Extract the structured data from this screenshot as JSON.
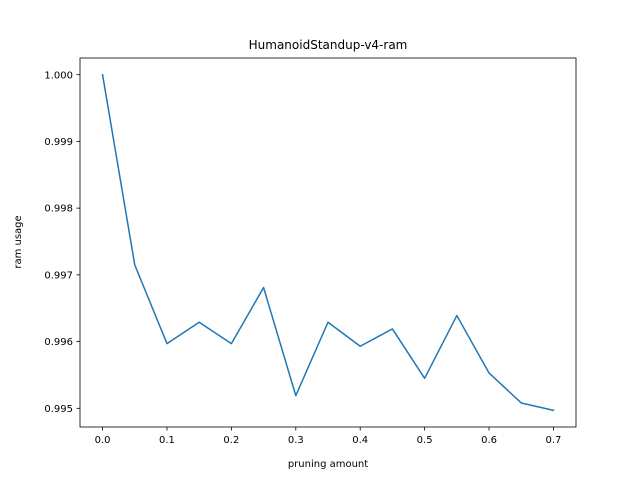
{
  "chart_data": {
    "type": "line",
    "title": "HumanoidStandup-v4-ram",
    "xlabel": "pruning amount",
    "ylabel": "ram usage",
    "xlim": [
      -0.035,
      0.735
    ],
    "ylim": [
      0.99472,
      1.00025
    ],
    "xticks": [
      0.0,
      0.1,
      0.2,
      0.3,
      0.4,
      0.5,
      0.6,
      0.7
    ],
    "xtick_labels": [
      "0.0",
      "0.1",
      "0.2",
      "0.3",
      "0.4",
      "0.5",
      "0.6",
      "0.7"
    ],
    "yticks": [
      0.995,
      0.996,
      0.997,
      0.998,
      0.999,
      1.0
    ],
    "ytick_labels": [
      "0.995",
      "0.996",
      "0.997",
      "0.998",
      "0.999",
      "1.000"
    ],
    "grid": false,
    "series": [
      {
        "color": "#1f77b4",
        "x": [
          0.0,
          0.05,
          0.1,
          0.15,
          0.2,
          0.25,
          0.3,
          0.35,
          0.4,
          0.45,
          0.5,
          0.55,
          0.6,
          0.65,
          0.7
        ],
        "y": [
          1.0,
          0.99715,
          0.99597,
          0.99629,
          0.99597,
          0.99681,
          0.99519,
          0.99629,
          0.99593,
          0.99619,
          0.99545,
          0.99639,
          0.99553,
          0.99508,
          0.99497
        ]
      }
    ]
  }
}
